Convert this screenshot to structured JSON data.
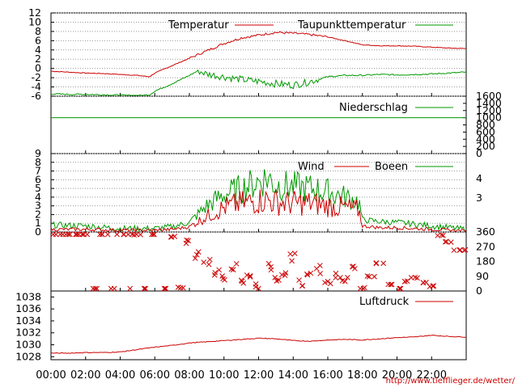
{
  "chart_data": [
    {
      "type": "line",
      "name": "temperature_panel",
      "ylim": [
        -6,
        12
      ],
      "y_ticks": [
        "12",
        "10",
        "8",
        "6",
        "4",
        "2",
        "0",
        "-2",
        "-4",
        "-6"
      ],
      "grid": true,
      "legend_position": "top-right",
      "series": [
        {
          "name": "Temperatur",
          "color": "#cc0000",
          "x_hours": [
            0,
            1,
            2,
            3,
            4,
            5,
            5.7,
            6,
            7,
            8,
            9,
            10,
            11,
            12,
            13,
            14,
            15,
            16,
            17,
            18,
            19,
            20,
            21,
            22,
            23,
            24
          ],
          "values": [
            -0.6,
            -0.8,
            -1.0,
            -1.1,
            -1.3,
            -1.5,
            -1.8,
            -1.0,
            0.6,
            2.2,
            3.8,
            5.4,
            6.6,
            7.2,
            7.8,
            7.6,
            7.3,
            6.8,
            6.0,
            5.1,
            4.9,
            4.9,
            4.8,
            4.6,
            4.4,
            4.3
          ]
        },
        {
          "name": "Taupunkttemperatur",
          "color": "#009900",
          "x_hours": [
            0,
            1,
            2,
            3,
            4,
            5,
            5.7,
            6,
            7,
            8,
            8.5,
            9,
            10,
            11,
            12,
            13,
            14,
            15,
            16,
            17,
            18,
            19,
            20,
            21,
            22,
            23,
            24
          ],
          "values": [
            -5.5,
            -5.6,
            -5.6,
            -5.7,
            -5.8,
            -5.9,
            -5.7,
            -4.9,
            -3.3,
            -1.5,
            -0.5,
            -1.2,
            -1.8,
            -2.4,
            -2.8,
            -3.3,
            -3.6,
            -2.8,
            -1.8,
            -1.5,
            -1.5,
            -1.3,
            -1.4,
            -1.3,
            -1.2,
            -1.0,
            -0.8
          ]
        }
      ]
    },
    {
      "type": "line",
      "name": "precipitation_panel",
      "ylim": [
        0,
        1600
      ],
      "y_ticks_right": [
        "1600",
        "1400",
        "1200",
        "1000",
        "800",
        "600",
        "400",
        "200",
        "0"
      ],
      "legend_position": "top-right",
      "series": [
        {
          "name": "Niederschlag",
          "color": "#009900",
          "x_hours": [
            0,
            24
          ],
          "values": [
            1000,
            1000
          ]
        }
      ]
    },
    {
      "type": "line",
      "name": "wind_panel",
      "ylim": [
        0,
        9
      ],
      "y_ticks": [
        "9",
        "8",
        "7",
        "6",
        "5",
        "4",
        "3",
        "2",
        "1",
        "0"
      ],
      "y_ticks_right": [
        "4",
        "3"
      ],
      "grid": true,
      "legend_position": "top-right",
      "series": [
        {
          "name": "Wind",
          "color": "#cc0000",
          "x_hours": [
            0,
            2,
            4,
            6,
            7,
            8,
            9,
            10,
            11,
            12,
            12.5,
            13,
            14,
            15,
            16,
            17,
            17.8,
            18,
            19,
            20,
            21,
            22,
            23,
            24
          ],
          "values": [
            0.3,
            0.3,
            0.2,
            0.2,
            0.3,
            0.6,
            1.8,
            2.8,
            3.3,
            3.6,
            3.7,
            3.4,
            3.3,
            3.3,
            3.0,
            2.8,
            2.5,
            0.7,
            0.5,
            0.5,
            0.4,
            0.3,
            0.2,
            0.1
          ]
        },
        {
          "name": "Boeen",
          "color": "#009900",
          "x_hours": [
            0,
            2,
            4,
            6,
            7,
            8,
            9,
            10,
            11,
            12,
            12.5,
            13,
            14,
            15,
            16,
            17,
            17.8,
            18,
            19,
            20,
            21,
            22,
            23,
            24
          ],
          "values": [
            0.8,
            0.7,
            0.4,
            0.4,
            0.6,
            1.1,
            3.0,
            4.3,
            5.0,
            5.8,
            6.2,
            5.4,
            5.2,
            5.0,
            4.6,
            4.0,
            3.5,
            1.4,
            1.2,
            1.1,
            0.9,
            0.7,
            0.5,
            0.3
          ]
        }
      ]
    },
    {
      "type": "scatter",
      "name": "wind_direction_panel",
      "ylim": [
        0,
        360
      ],
      "y_ticks_right": [
        "360",
        "270",
        "180",
        "90",
        "0"
      ],
      "marker": "x",
      "series": [
        {
          "name": "direction",
          "color": "#cc0000",
          "x_hours": [
            0,
            0.5,
            1,
            1.5,
            2,
            2.5,
            3,
            3.5,
            4,
            4.5,
            5,
            5.5,
            6,
            6.5,
            7,
            7.5,
            8,
            8.5,
            9,
            9.5,
            10,
            10.5,
            11,
            11.5,
            12,
            12.5,
            13,
            13.5,
            14,
            14.5,
            15,
            15.5,
            16,
            16.5,
            17,
            17.5,
            18,
            18.5,
            19,
            19.5,
            20,
            20.5,
            21,
            21.5,
            22,
            22.5,
            23,
            23.5,
            24
          ],
          "values": [
            350,
            0,
            350,
            0,
            355,
            0,
            350,
            0,
            350,
            0,
            345,
            5,
            350,
            10,
            330,
            20,
            300,
            220,
            180,
            120,
            90,
            140,
            60,
            100,
            20,
            150,
            80,
            120,
            200,
            60,
            90,
            130,
            40,
            110,
            80,
            150,
            30,
            90,
            170,
            40,
            10,
            60,
            80,
            50,
            30,
            340,
            300,
            250,
            250
          ]
        }
      ]
    },
    {
      "type": "line",
      "name": "pressure_panel",
      "ylim": [
        1027.5,
        1039
      ],
      "y_ticks": [
        "1038",
        "1036",
        "1034",
        "1032",
        "1030",
        "1028"
      ],
      "legend_position": "top-right",
      "series": [
        {
          "name": "Luftdruck",
          "color": "#cc0000",
          "x_hours": [
            0,
            1,
            2,
            3,
            4,
            5,
            6,
            7,
            8,
            9,
            10,
            11,
            12,
            13,
            14,
            15,
            16,
            17,
            18,
            19,
            20,
            21,
            22,
            23,
            24
          ],
          "values": [
            1028.6,
            1028.6,
            1028.7,
            1028.7,
            1028.8,
            1029.2,
            1029.6,
            1029.9,
            1030.3,
            1030.5,
            1030.7,
            1030.9,
            1031.1,
            1031.0,
            1030.7,
            1030.6,
            1030.8,
            1030.9,
            1030.8,
            1031.0,
            1031.2,
            1031.3,
            1031.6,
            1031.4,
            1031.3
          ]
        }
      ]
    }
  ],
  "x_axis": {
    "ticks": [
      "00:00",
      "02:00",
      "04:00",
      "06:00",
      "08:00",
      "10:00",
      "12:00",
      "14:00",
      "16:00",
      "18:00",
      "20:00",
      "22:00"
    ]
  },
  "legend": {
    "temperatur": "Temperatur",
    "taupunkt": "Taupunkttemperatur",
    "niederschlag": "Niederschlag",
    "wind": "Wind",
    "boeen": "Boeen",
    "luftdruck": "Luftdruck"
  },
  "footer": {
    "url": "http://www.tiefflieger.de/wetter/"
  },
  "colors": {
    "red": "#cc0000",
    "green": "#009900",
    "grid": "#999999"
  }
}
